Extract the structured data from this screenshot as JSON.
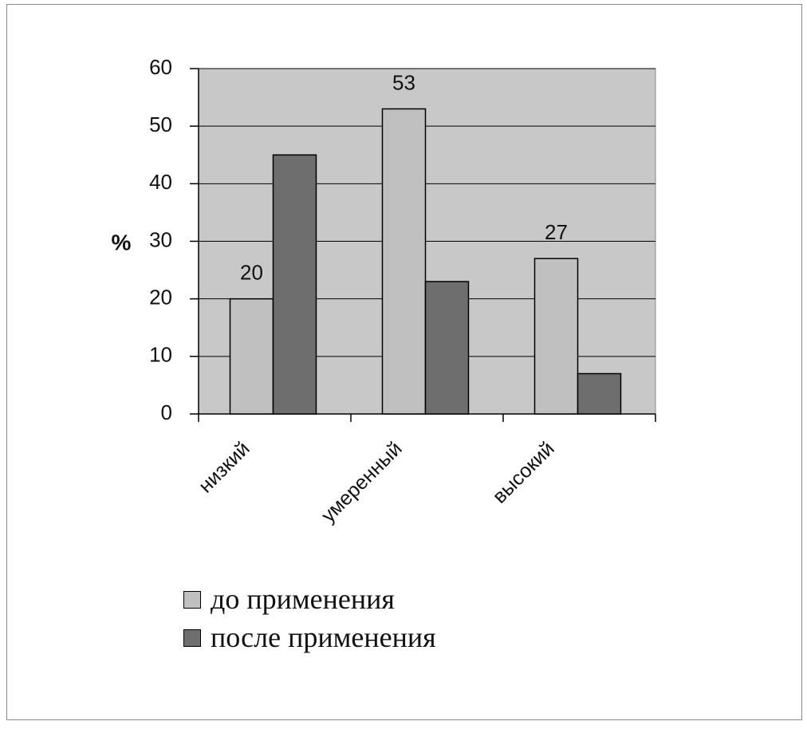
{
  "chart_data": {
    "type": "bar",
    "ylabel": "%",
    "categories": [
      "низкий",
      "умеренный",
      "высокий"
    ],
    "series": [
      {
        "name": "до применения",
        "color": "#c0c0c0",
        "values": [
          20,
          53,
          27
        ],
        "show_labels": true
      },
      {
        "name": "после применения",
        "color": "#6e6e6e",
        "values": [
          45,
          23,
          7
        ]
      }
    ],
    "ylim": [
      0,
      60
    ],
    "yticks": [
      0,
      10,
      20,
      30,
      40,
      50,
      60
    ],
    "grid": true,
    "plot_background": "#c8c8c8"
  }
}
